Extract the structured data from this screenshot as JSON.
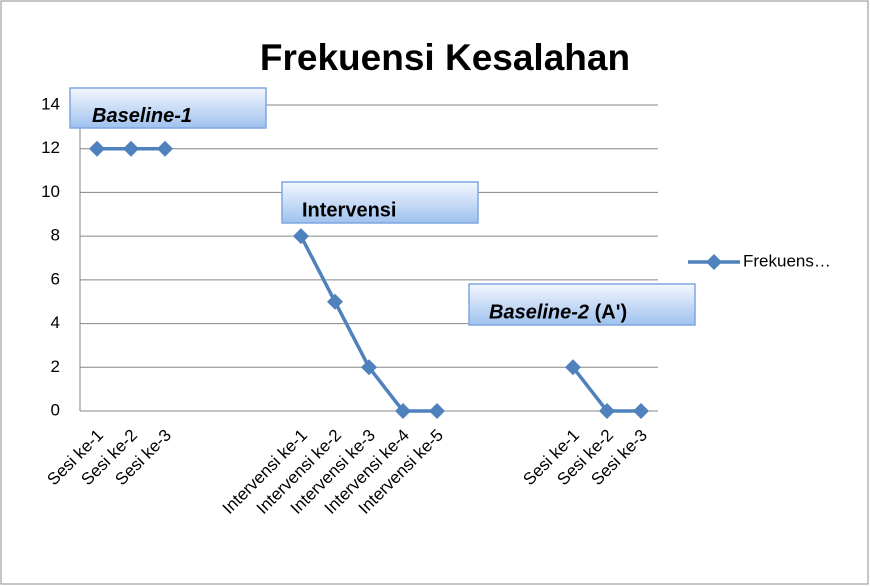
{
  "chart_data": {
    "type": "line",
    "title": "Frekuensi Kesalahan",
    "categories": [
      "Sesi ke-1",
      "Sesi ke-2",
      "Sesi ke-3",
      null,
      null,
      null,
      "Intervensi ke-1",
      "Intervensi ke-2",
      "Intervensi ke-3",
      "Intervensi ke-4",
      "Intervensi ke-5",
      null,
      null,
      null,
      "Sesi ke-1",
      "Sesi ke-2",
      "Sesi ke-3"
    ],
    "series": [
      {
        "name": "Frekuens…",
        "color": "#4f81bd",
        "values": [
          12,
          12,
          12,
          null,
          null,
          null,
          8,
          5,
          2,
          0,
          0,
          null,
          null,
          null,
          2,
          0,
          0
        ]
      }
    ],
    "ylim": [
      0,
      14
    ],
    "yticks": [
      0,
      2,
      4,
      6,
      8,
      10,
      12,
      14
    ],
    "grid": true,
    "legend": "right",
    "annotations": [
      {
        "italic": "Baseline-1"
      },
      {
        "text": "Intervensi"
      },
      {
        "italic": "Baseline-2",
        "text": " (A')"
      }
    ]
  }
}
